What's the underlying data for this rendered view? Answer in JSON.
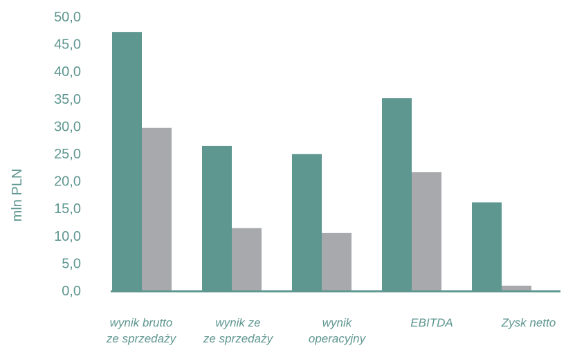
{
  "chart_data": {
    "type": "bar",
    "title": "",
    "xlabel": "",
    "ylabel": "mln PLN",
    "ylim": [
      0,
      50
    ],
    "yticks": [
      "0,0",
      "5,0",
      "10,0",
      "15,0",
      "20,0",
      "25,0",
      "30,0",
      "35,0",
      "40,0",
      "45,0",
      "50,0"
    ],
    "categories": [
      [
        "wynik brutto",
        "ze sprzedaży"
      ],
      [
        "wynik ze",
        "ze sprzedaży"
      ],
      [
        "wynik",
        "operacyjny"
      ],
      [
        "EBITDA"
      ],
      [
        "Zysk netto"
      ]
    ],
    "series": [
      {
        "values": [
          47.2,
          26.4,
          24.9,
          35.1,
          16.1
        ]
      },
      {
        "values": [
          29.7,
          11.4,
          10.5,
          21.6,
          0.9
        ]
      }
    ],
    "grid": false,
    "legend": "none",
    "colors": [
      "#5e9690",
      "#a7a9ac"
    ],
    "axis_color": "#5e9690"
  }
}
